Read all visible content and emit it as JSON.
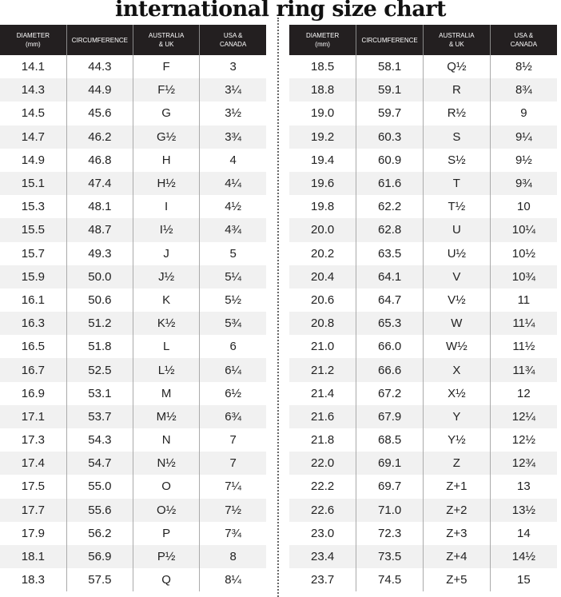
{
  "title": "international ring size chart",
  "headers": [
    "DIAMETER\n(mm)",
    "CIRCUMFERENCE",
    "AUSTRALIA\n& UK",
    "USA &\nCANADA"
  ],
  "left_rows": [
    [
      "14.1",
      "44.3",
      "F",
      "3"
    ],
    [
      "14.3",
      "44.9",
      "F½",
      "3¼"
    ],
    [
      "14.5",
      "45.6",
      "G",
      "3½"
    ],
    [
      "14.7",
      "46.2",
      "G½",
      "3¾"
    ],
    [
      "14.9",
      "46.8",
      "H",
      "4"
    ],
    [
      "15.1",
      "47.4",
      "H½",
      "4¼"
    ],
    [
      "15.3",
      "48.1",
      "I",
      "4½"
    ],
    [
      "15.5",
      "48.7",
      "I½",
      "4¾"
    ],
    [
      "15.7",
      "49.3",
      "J",
      "5"
    ],
    [
      "15.9",
      "50.0",
      "J½",
      "5¼"
    ],
    [
      "16.1",
      "50.6",
      "K",
      "5½"
    ],
    [
      "16.3",
      "51.2",
      "K½",
      "5¾"
    ],
    [
      "16.5",
      "51.8",
      "L",
      "6"
    ],
    [
      "16.7",
      "52.5",
      "L½",
      "6¼"
    ],
    [
      "16.9",
      "53.1",
      "M",
      "6½"
    ],
    [
      "17.1",
      "53.7",
      "M½",
      "6¾"
    ],
    [
      "17.3",
      "54.3",
      "N",
      "7"
    ],
    [
      "17.4",
      "54.7",
      "N½",
      "7"
    ],
    [
      "17.5",
      "55.0",
      "O",
      "7¼"
    ],
    [
      "17.7",
      "55.6",
      "O½",
      "7½"
    ],
    [
      "17.9",
      "56.2",
      "P",
      "7¾"
    ],
    [
      "18.1",
      "56.9",
      "P½",
      "8"
    ],
    [
      "18.3",
      "57.5",
      "Q",
      "8¼"
    ]
  ],
  "right_rows": [
    [
      "18.5",
      "58.1",
      "Q½",
      "8½"
    ],
    [
      "18.8",
      "59.1",
      "R",
      "8¾"
    ],
    [
      "19.0",
      "59.7",
      "R½",
      "9"
    ],
    [
      "19.2",
      "60.3",
      "S",
      "9¼"
    ],
    [
      "19.4",
      "60.9",
      "S½",
      "9½"
    ],
    [
      "19.6",
      "61.6",
      "T",
      "9¾"
    ],
    [
      "19.8",
      "62.2",
      "T½",
      "10"
    ],
    [
      "20.0",
      "62.8",
      "U",
      "10¼"
    ],
    [
      "20.2",
      "63.5",
      "U½",
      "10½"
    ],
    [
      "20.4",
      "64.1",
      "V",
      "10¾"
    ],
    [
      "20.6",
      "64.7",
      "V½",
      "11"
    ],
    [
      "20.8",
      "65.3",
      "W",
      "11¼"
    ],
    [
      "21.0",
      "66.0",
      "W½",
      "11½"
    ],
    [
      "21.2",
      "66.6",
      "X",
      "11¾"
    ],
    [
      "21.4",
      "67.2",
      "X½",
      "12"
    ],
    [
      "21.6",
      "67.9",
      "Y",
      "12¼"
    ],
    [
      "21.8",
      "68.5",
      "Y½",
      "12½"
    ],
    [
      "22.0",
      "69.1",
      "Z",
      "12¾"
    ],
    [
      "22.2",
      "69.7",
      "Z+1",
      "13"
    ],
    [
      "22.6",
      "71.0",
      "Z+2",
      "13½"
    ],
    [
      "23.0",
      "72.3",
      "Z+3",
      "14"
    ],
    [
      "23.4",
      "73.5",
      "Z+4",
      "14½"
    ],
    [
      "23.7",
      "74.5",
      "Z+5",
      "15"
    ]
  ],
  "colors": {
    "header_bg": "#231f20",
    "stripe": "#f1f1f1"
  }
}
